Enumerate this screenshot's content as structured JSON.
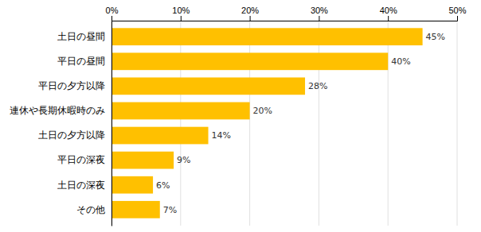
{
  "chart_data": {
    "type": "bar",
    "orientation": "horizontal",
    "categories": [
      "土日の昼間",
      "平日の昼間",
      "平日の夕方以降",
      "連休や長期休暇時のみ",
      "土日の夕方以降",
      "平日の深夜",
      "土日の深夜",
      "その他"
    ],
    "values": [
      45,
      40,
      28,
      20,
      14,
      9,
      6,
      7
    ],
    "value_labels": [
      "45%",
      "40%",
      "28%",
      "20%",
      "14%",
      "9%",
      "6%",
      "7%"
    ],
    "data_labels": true,
    "color": "#FFC000",
    "xlim": [
      0,
      50
    ],
    "xticks": [
      {
        "value": 0,
        "label": "0%"
      },
      {
        "value": 10,
        "label": "10%"
      },
      {
        "value": 20,
        "label": "20%"
      },
      {
        "value": 30,
        "label": "30%"
      },
      {
        "value": 40,
        "label": "40%"
      },
      {
        "value": 50,
        "label": "50%"
      }
    ],
    "grid": true
  }
}
